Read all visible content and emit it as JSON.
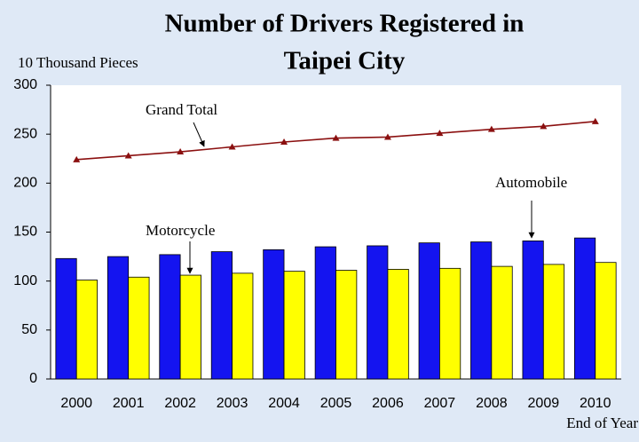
{
  "chart_data": {
    "type": "bar_line",
    "title": [
      "Number of Drivers Registered in",
      "Taipei City"
    ],
    "y_label": "10 Thousand Pieces",
    "x_label": "End of Year",
    "categories": [
      "2000",
      "2001",
      "2002",
      "2003",
      "2004",
      "2005",
      "2006",
      "2007",
      "2008",
      "2009",
      "2010"
    ],
    "series": [
      {
        "name": "Automobile",
        "type": "bar",
        "color": "#1414f0",
        "values": [
          123,
          125,
          127,
          130,
          132,
          135,
          136,
          139,
          140,
          141,
          144
        ]
      },
      {
        "name": "Motorcycle",
        "type": "bar",
        "color": "#ffff00",
        "values": [
          101,
          104,
          106,
          108,
          110,
          111,
          112,
          113,
          115,
          117,
          119
        ]
      },
      {
        "name": "Grand Total",
        "type": "line",
        "color": "#8b1010",
        "values": [
          224,
          228,
          232,
          237,
          242,
          246,
          247,
          251,
          255,
          258,
          263
        ]
      }
    ],
    "ylim": [
      0,
      300
    ],
    "yticks": [
      0,
      50,
      100,
      150,
      200,
      250,
      300
    ],
    "grid": false
  }
}
